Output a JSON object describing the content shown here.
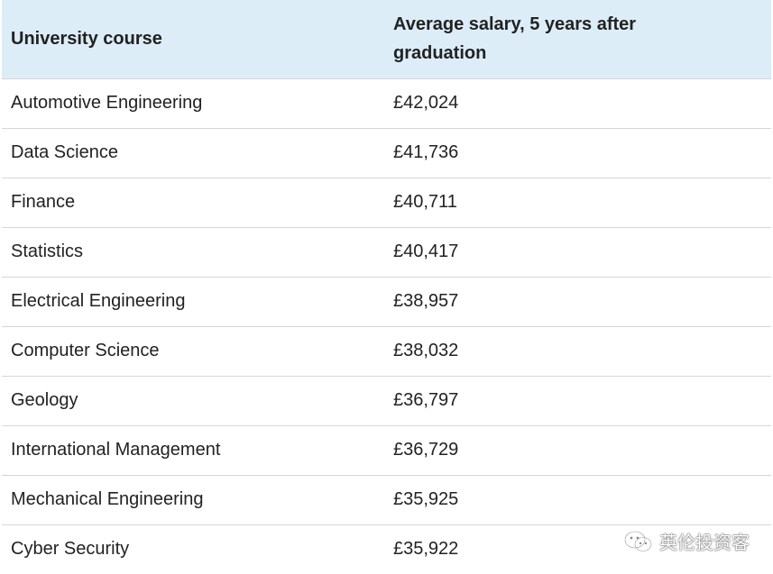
{
  "table": {
    "headers": [
      "University course",
      "Average salary, 5 years after graduation"
    ],
    "rows": [
      {
        "course": "Automotive Engineering",
        "salary": "£42,024"
      },
      {
        "course": "Data Science",
        "salary": "£41,736"
      },
      {
        "course": "Finance",
        "salary": "£40,711"
      },
      {
        "course": "Statistics",
        "salary": "£40,417"
      },
      {
        "course": "Electrical Engineering",
        "salary": "£38,957"
      },
      {
        "course": "Computer Science",
        "salary": "£38,032"
      },
      {
        "course": "Geology",
        "salary": "£36,797"
      },
      {
        "course": "International Management",
        "salary": "£36,729"
      },
      {
        "course": "Mechanical Engineering",
        "salary": "£35,925"
      },
      {
        "course": "Cyber Security",
        "salary": "£35,922"
      }
    ]
  },
  "watermark": {
    "text": "英伦投资客",
    "icon": "wechat-icon"
  },
  "colors": {
    "header_background": "#dcedf8",
    "row_border": "#d6d6d6",
    "text": "#222222"
  }
}
